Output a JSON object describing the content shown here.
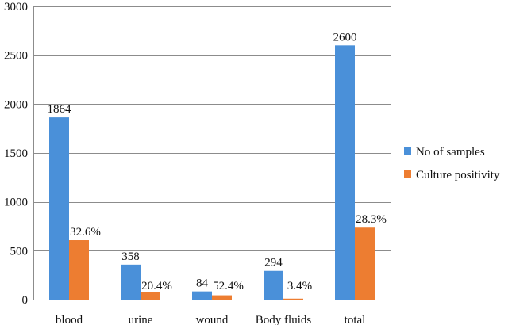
{
  "chart_data": {
    "type": "bar",
    "categories": [
      "blood",
      "urine",
      "wound",
      "Body fluids",
      "total"
    ],
    "series": [
      {
        "name": "No of samples",
        "color": "#4a90d9",
        "values": [
          1864,
          358,
          84,
          294,
          2600
        ],
        "labels": [
          "1864",
          "358",
          "84",
          "294",
          "2600"
        ]
      },
      {
        "name": "Culture positivity",
        "color": "#ed7d31",
        "values": [
          608,
          73,
          44,
          10,
          736
        ],
        "labels": [
          "32.6%",
          "20.4%",
          "52.4%",
          "3.4%",
          "28.3%"
        ]
      }
    ],
    "yticks": [
      "0",
      "500",
      "1000",
      "1500",
      "2000",
      "2500",
      "3000"
    ],
    "ylim": [
      0,
      3000
    ],
    "grid": true,
    "legend_position": "right"
  }
}
